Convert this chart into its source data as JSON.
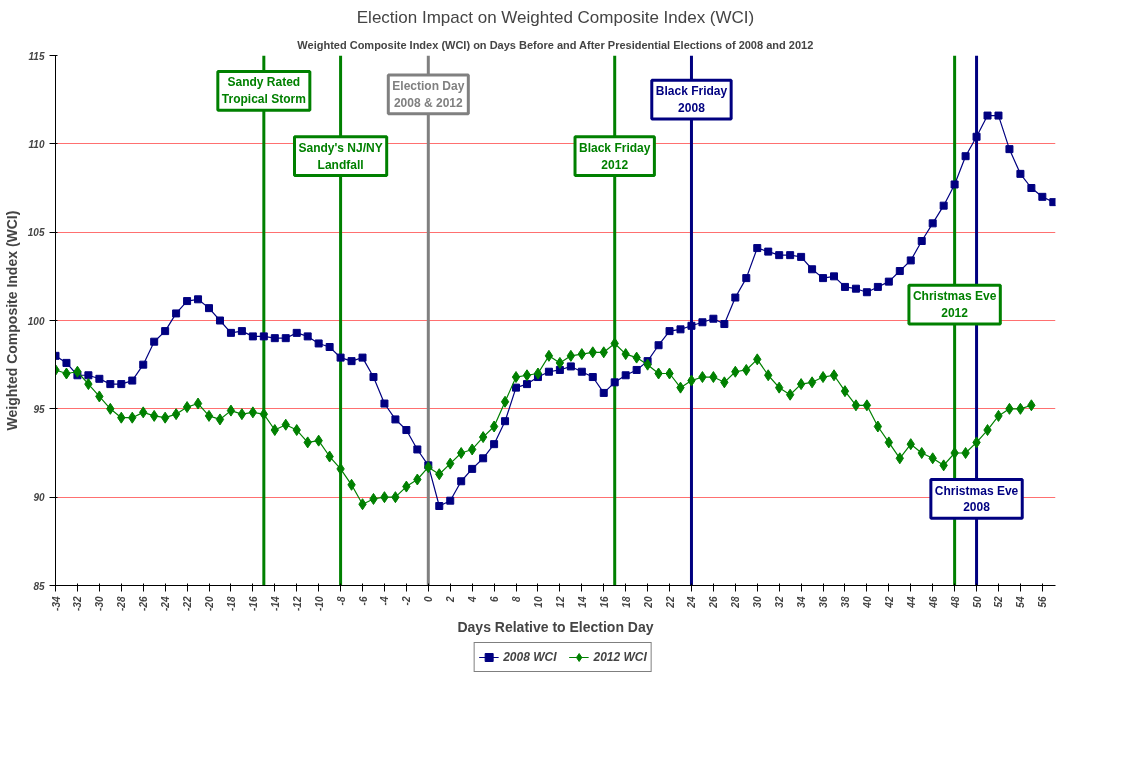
{
  "chart_data": {
    "type": "line",
    "title": "Election Impact on Weighted Composite Index (WCI)",
    "subtitle": "Weighted Composite Index (WCI) on Days Before and After Presidential Elections of 2008 and 2012",
    "xlabel": "Days Relative to Election Day",
    "ylabel": "Weighted Composite Index (WCI)",
    "xlim": [
      -34,
      57.2
    ],
    "ylim": [
      85,
      115
    ],
    "xticks": [
      -34,
      -32,
      -30,
      -28,
      -26,
      -24,
      -22,
      -20,
      -18,
      -16,
      -14,
      -12,
      -10,
      -8,
      -6,
      -4,
      -2,
      0,
      2,
      4,
      6,
      8,
      10,
      12,
      14,
      16,
      18,
      20,
      22,
      24,
      26,
      28,
      30,
      32,
      34,
      36,
      38,
      40,
      42,
      44,
      46,
      48,
      50,
      52,
      54,
      56
    ],
    "yticks": [
      85,
      90,
      95,
      100,
      105,
      110,
      115
    ],
    "grid": "y",
    "legend": "bottom",
    "line_style": "solid",
    "series": [
      {
        "name": "2008 WCI",
        "color": "#000080",
        "marker": "square",
        "x": [
          -34,
          -33,
          -32,
          -31,
          -30,
          -29,
          -28,
          -27,
          -26,
          -25,
          -24,
          -23,
          -22,
          -21,
          -20,
          -19,
          -18,
          -17,
          -16,
          -15,
          -14,
          -13,
          -12,
          -11,
          -10,
          -9,
          -8,
          -7,
          -6,
          -5,
          -4,
          -3,
          -2,
          -1,
          0,
          1,
          2,
          3,
          4,
          5,
          6,
          7,
          8,
          9,
          10,
          11,
          12,
          13,
          14,
          15,
          16,
          17,
          18,
          19,
          20,
          21,
          22,
          23,
          24,
          25,
          26,
          27,
          28,
          29,
          30,
          31,
          32,
          33,
          34,
          35,
          36,
          37,
          38,
          39,
          40,
          41,
          42,
          43,
          44,
          45,
          46,
          47,
          48,
          49,
          50,
          51,
          52,
          53,
          54,
          55,
          56,
          57
        ],
        "values": [
          98.0,
          97.6,
          96.9,
          96.9,
          96.7,
          96.4,
          96.4,
          96.6,
          97.5,
          98.8,
          99.4,
          100.4,
          101.1,
          101.2,
          100.7,
          100.0,
          99.3,
          99.4,
          99.1,
          99.1,
          99.0,
          99.0,
          99.3,
          99.1,
          98.7,
          98.5,
          97.9,
          97.7,
          97.9,
          96.8,
          95.3,
          94.4,
          93.8,
          92.7,
          91.8,
          89.5,
          89.8,
          90.9,
          91.6,
          92.2,
          93.0,
          94.3,
          96.2,
          96.4,
          96.8,
          97.1,
          97.2,
          97.4,
          97.1,
          96.8,
          95.9,
          96.5,
          96.9,
          97.2,
          97.7,
          98.6,
          99.4,
          99.5,
          99.7,
          99.9,
          100.1,
          99.8,
          101.3,
          102.4,
          104.1,
          103.9,
          103.7,
          103.7,
          103.6,
          102.9,
          102.4,
          102.5,
          101.9,
          101.8,
          101.6,
          101.9,
          102.2,
          102.8,
          103.4,
          104.5,
          105.5,
          106.5,
          107.7,
          109.3,
          110.4,
          111.6,
          111.6,
          109.7,
          108.3,
          107.5,
          107.0,
          106.7
        ]
      },
      {
        "name": "2012 WCI",
        "color": "#008000",
        "marker": "diamond",
        "x": [
          -34,
          -33,
          -32,
          -31,
          -30,
          -29,
          -28,
          -27,
          -26,
          -25,
          -24,
          -23,
          -22,
          -21,
          -20,
          -19,
          -18,
          -17,
          -16,
          -15,
          -14,
          -13,
          -12,
          -11,
          -10,
          -9,
          -8,
          -7,
          -6,
          -5,
          -4,
          -3,
          -2,
          -1,
          0,
          1,
          2,
          3,
          4,
          5,
          6,
          7,
          8,
          9,
          10,
          11,
          12,
          13,
          14,
          15,
          16,
          17,
          18,
          19,
          20,
          21,
          22,
          23,
          24,
          25,
          26,
          27,
          28,
          29,
          30,
          31,
          32,
          33,
          34,
          35,
          36,
          37,
          38,
          39,
          40,
          41,
          42,
          43,
          44,
          45,
          46,
          47,
          48,
          49,
          50,
          51,
          52,
          53,
          54,
          55
        ],
        "values": [
          97.2,
          97.0,
          97.1,
          96.4,
          95.7,
          95.0,
          94.5,
          94.5,
          94.8,
          94.6,
          94.5,
          94.7,
          95.1,
          95.3,
          94.6,
          94.4,
          94.9,
          94.7,
          94.8,
          94.7,
          93.8,
          94.1,
          93.8,
          93.1,
          93.2,
          92.3,
          91.6,
          90.7,
          89.6,
          89.9,
          90.0,
          90.0,
          90.6,
          91.0,
          91.7,
          91.3,
          91.9,
          92.5,
          92.7,
          93.4,
          94.0,
          95.4,
          96.8,
          96.9,
          97.0,
          98.0,
          97.6,
          98.0,
          98.1,
          98.2,
          98.2,
          98.7,
          98.1,
          97.9,
          97.5,
          97.0,
          97.0,
          96.2,
          96.6,
          96.8,
          96.8,
          96.5,
          97.1,
          97.2,
          97.8,
          96.9,
          96.2,
          95.8,
          96.4,
          96.5,
          96.8,
          96.9,
          96.0,
          95.2,
          95.2,
          94.0,
          93.1,
          92.2,
          93.0,
          92.5,
          92.2,
          91.8,
          92.5,
          92.5,
          93.1,
          93.8,
          94.6,
          95.0,
          95.0,
          95.2
        ]
      }
    ],
    "ref_lines": [
      {
        "axis": "x",
        "value": -15,
        "label": "Sandy Rated\nTropical Storm",
        "color": "#008000"
      },
      {
        "axis": "x",
        "value": -8,
        "label": "Sandy's NJ/NY\nLandfall",
        "color": "#008000"
      },
      {
        "axis": "x",
        "value": 0,
        "label": "Election Day\n2008 & 2012",
        "color": "#808080"
      },
      {
        "axis": "x",
        "value": 17,
        "label": "Black Friday\n2012",
        "color": "#008000"
      },
      {
        "axis": "x",
        "value": 24,
        "label": "Black Friday\n2008",
        "color": "#000080"
      },
      {
        "axis": "x",
        "value": 48,
        "label": "Christmas Eve\n2012",
        "color": "#008000"
      },
      {
        "axis": "x",
        "value": 50,
        "label": "Christmas Eve\n2008",
        "color": "#000080"
      }
    ]
  }
}
